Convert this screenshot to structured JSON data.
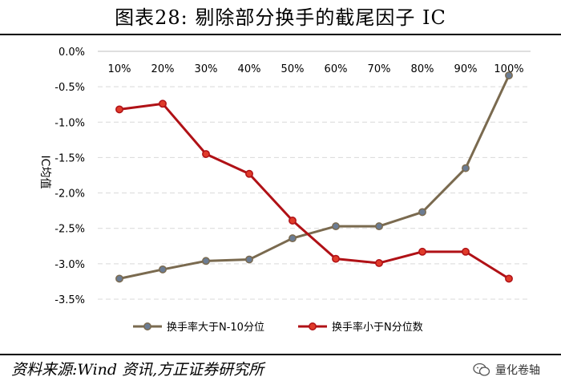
{
  "title": "图表28:      剔除部分换手的截尾因子 IC",
  "source": "资料来源:Wind 资讯,方正证券研究所",
  "watermark": "量化卷轴",
  "chart_data": {
    "type": "line",
    "ylabel": "IC均值",
    "xlabel": "",
    "categories": [
      "10%",
      "20%",
      "30%",
      "40%",
      "50%",
      "60%",
      "70%",
      "80%",
      "90%",
      "100%"
    ],
    "ylim": [
      -0.035,
      0.0
    ],
    "yticks": [
      "0.0%",
      "-0.5%",
      "-1.0%",
      "-1.5%",
      "-2.0%",
      "-2.5%",
      "-3.0%",
      "-3.5%"
    ],
    "grid": true,
    "legend": "bottom",
    "series": [
      {
        "name": "换手率大于N-10分位",
        "color": "#7a6a4f",
        "values": [
          -0.0321,
          -0.0308,
          -0.0296,
          -0.0294,
          -0.0264,
          -0.0247,
          -0.0247,
          -0.0227,
          -0.0165,
          -0.0034
        ]
      },
      {
        "name": "换手率小于N分位数",
        "color": "#b01116",
        "values": [
          -0.0082,
          -0.0074,
          -0.0145,
          -0.0173,
          -0.0239,
          -0.0293,
          -0.0299,
          -0.0283,
          -0.0283,
          -0.0321
        ]
      }
    ]
  }
}
